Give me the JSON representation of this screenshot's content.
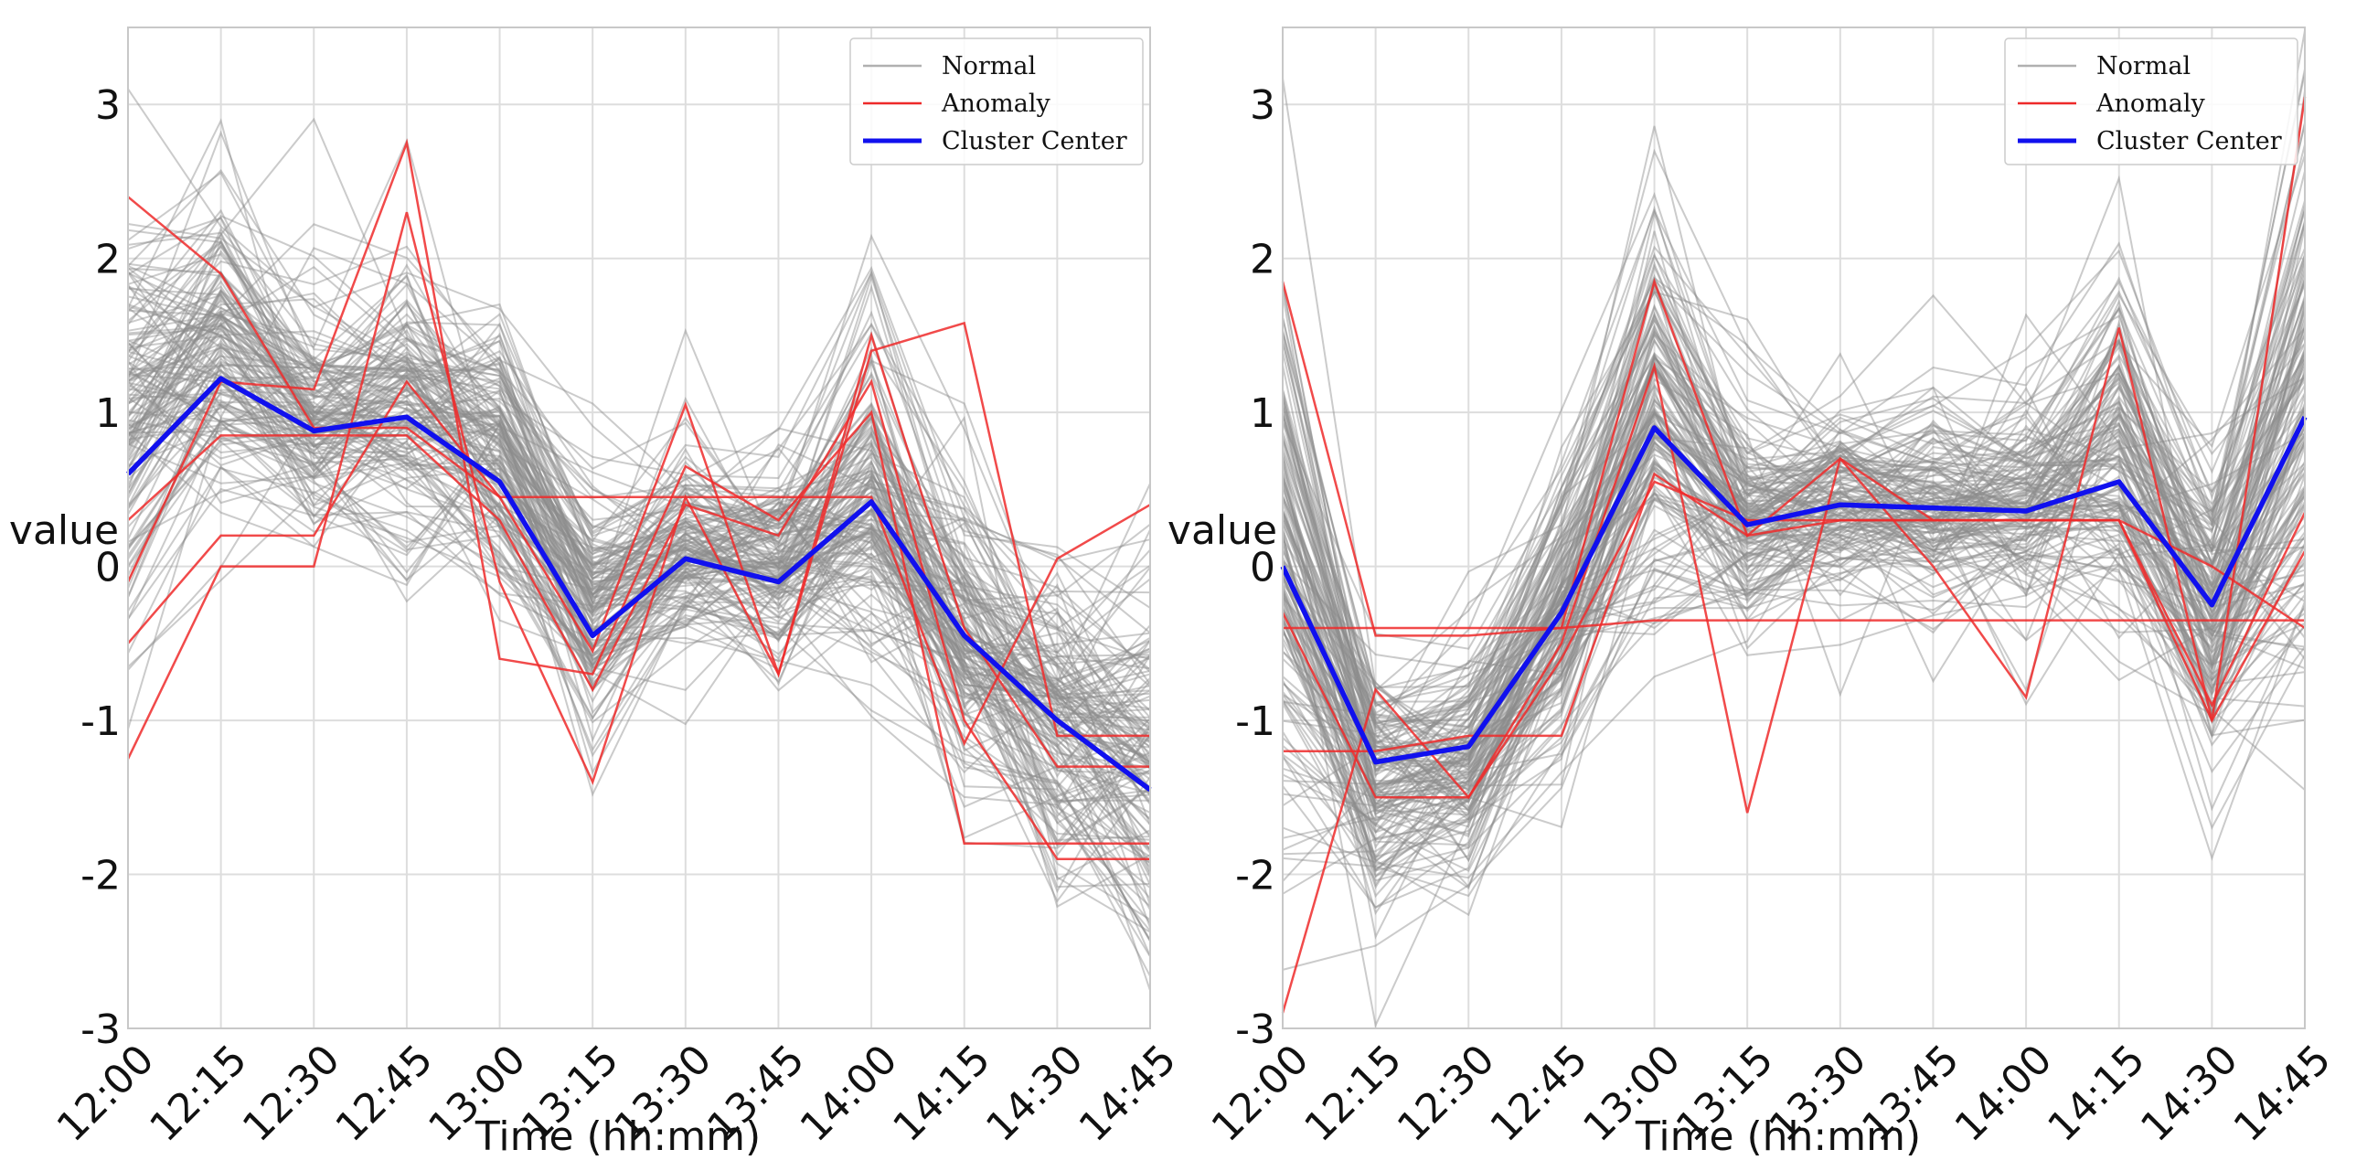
{
  "chart_data": [
    {
      "type": "line",
      "panel": "left",
      "xlabel": "Time (hh:mm)",
      "ylabel": "value",
      "ylim": [
        -3,
        3.5
      ],
      "yticks": [
        -3,
        -2,
        -1,
        0,
        1,
        2,
        3
      ],
      "grid": true,
      "legend_position": "top-right",
      "categories": [
        "12:00",
        "12:15",
        "12:30",
        "12:45",
        "13:00",
        "13:15",
        "13:30",
        "13:45",
        "14:00",
        "14:15",
        "14:30",
        "14:45"
      ],
      "legend": [
        "Normal",
        "Anomaly",
        "Cluster Center"
      ],
      "normal_profile": {
        "values": [
          1.0,
          1.45,
          0.95,
          1.05,
          0.8,
          -0.25,
          0.1,
          0.0,
          0.4,
          -0.5,
          -1.0,
          -1.3
        ],
        "spread": [
          0.65,
          0.45,
          0.35,
          0.45,
          0.45,
          0.45,
          0.3,
          0.3,
          0.55,
          0.45,
          0.5,
          0.6
        ],
        "count": 150
      },
      "series": [
        {
          "name": "Cluster Center",
          "color": "#1010ee",
          "values": [
            0.6,
            1.22,
            0.88,
            0.97,
            0.55,
            -0.45,
            0.05,
            -0.1,
            0.42,
            -0.45,
            -1.0,
            -1.45
          ]
        },
        {
          "name": "Anomaly 1",
          "color": "#ee2a2a",
          "values": [
            2.4,
            1.9,
            0.9,
            0.9,
            0.45,
            -0.55,
            1.05,
            -0.7,
            1.5,
            -0.4,
            -1.3,
            -1.3
          ]
        },
        {
          "name": "Anomaly 2",
          "color": "#ee2a2a",
          "values": [
            -0.1,
            1.2,
            1.15,
            2.75,
            -0.6,
            -0.7,
            0.65,
            0.3,
            1.0,
            -1.8,
            -1.8,
            -1.8
          ]
        },
        {
          "name": "Anomaly 3",
          "color": "#ee2a2a",
          "values": [
            -1.25,
            0.0,
            0.0,
            2.3,
            -0.1,
            -1.4,
            0.45,
            -0.7,
            1.4,
            1.58,
            -1.1,
            -1.1
          ]
        },
        {
          "name": "Anomaly 4",
          "color": "#ee2a2a",
          "values": [
            -0.5,
            0.2,
            0.2,
            1.2,
            0.45,
            0.45,
            0.45,
            0.45,
            0.45,
            -1.15,
            0.05,
            0.4
          ]
        },
        {
          "name": "Anomaly 5",
          "color": "#ee2a2a",
          "values": [
            0.3,
            0.85,
            0.85,
            0.85,
            0.3,
            -0.8,
            0.4,
            0.2,
            1.2,
            -1.0,
            -1.9,
            -1.9
          ]
        }
      ]
    },
    {
      "type": "line",
      "panel": "right",
      "xlabel": "Time (hh:mm)",
      "ylabel": "value",
      "ylim": [
        -3,
        3.5
      ],
      "yticks": [
        -3,
        -2,
        -1,
        0,
        1,
        2,
        3
      ],
      "grid": true,
      "legend_position": "top-right",
      "categories": [
        "12:00",
        "12:15",
        "12:30",
        "12:45",
        "13:00",
        "13:15",
        "13:30",
        "13:45",
        "14:00",
        "14:15",
        "14:30",
        "14:45"
      ],
      "legend": [
        "Normal",
        "Anomaly",
        "Cluster Center"
      ],
      "normal_profile": {
        "values": [
          0.1,
          -1.35,
          -1.3,
          -0.2,
          1.0,
          0.35,
          0.45,
          0.4,
          0.4,
          0.75,
          -0.25,
          1.0
        ],
        "spread": [
          0.9,
          0.35,
          0.35,
          0.45,
          0.6,
          0.35,
          0.3,
          0.3,
          0.3,
          0.55,
          0.5,
          0.85
        ],
        "count": 150
      },
      "series": [
        {
          "name": "Cluster Center",
          "color": "#1010ee",
          "values": [
            0.0,
            -1.27,
            -1.17,
            -0.3,
            0.9,
            0.27,
            0.4,
            0.38,
            0.36,
            0.55,
            -0.25,
            0.97
          ]
        },
        {
          "name": "Anomaly 1",
          "color": "#ee2a2a",
          "values": [
            1.85,
            -0.45,
            -0.45,
            -0.4,
            1.85,
            0.2,
            0.7,
            0.0,
            -0.85,
            1.55,
            -1.0,
            3.05
          ]
        },
        {
          "name": "Anomaly 2",
          "color": "#ee2a2a",
          "values": [
            -2.9,
            -0.8,
            -1.5,
            -0.5,
            1.3,
            -1.6,
            0.7,
            0.3,
            0.3,
            0.3,
            -0.9,
            0.35
          ]
        },
        {
          "name": "Anomaly 3",
          "color": "#ee2a2a",
          "values": [
            -0.4,
            -0.4,
            -0.4,
            -0.4,
            -0.35,
            -0.35,
            -0.35,
            -0.35,
            -0.35,
            -0.35,
            -0.35,
            -0.35
          ]
        },
        {
          "name": "Anomaly 4",
          "color": "#ee2a2a",
          "values": [
            -1.2,
            -1.2,
            -1.1,
            -1.1,
            0.6,
            0.2,
            0.3,
            0.3,
            0.3,
            0.3,
            0.0,
            -0.4
          ]
        },
        {
          "name": "Anomaly 5",
          "color": "#ee2a2a",
          "values": [
            -0.3,
            -1.5,
            -1.5,
            -0.6,
            0.55,
            0.3,
            0.3,
            0.3,
            0.3,
            0.3,
            -1.0,
            0.1
          ]
        }
      ]
    }
  ]
}
